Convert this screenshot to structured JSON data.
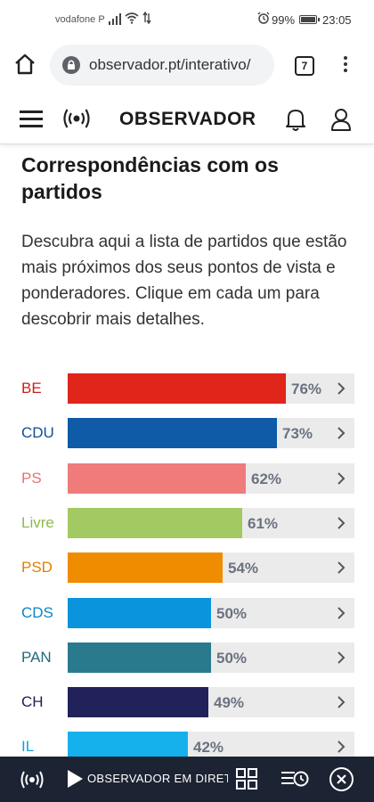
{
  "status_bar": {
    "carrier": "vodafone P",
    "battery": "99%",
    "time": "23:05"
  },
  "browser": {
    "url": "observador.pt/interativo/",
    "tab_count": "7"
  },
  "site": {
    "logo": "OBSERVADOR"
  },
  "section": {
    "title": "Correspondências com os partidos",
    "description": "Descubra aqui a lista de partidos que estão mais próximos dos seus pontos de vista e ponderadores. Clique em cada um para descobrir mais detalhes."
  },
  "parties": [
    {
      "name": "BE",
      "value": 76,
      "label": "76%",
      "color": "#e0251b",
      "name_color": "#c8211a"
    },
    {
      "name": "CDU",
      "value": 73,
      "label": "73%",
      "color": "#0f5ba8",
      "name_color": "#0f4f92"
    },
    {
      "name": "PS",
      "value": 62,
      "label": "62%",
      "color": "#ef7b7b",
      "name_color": "#e77373"
    },
    {
      "name": "Livre",
      "value": 61,
      "label": "61%",
      "color": "#a3c962",
      "name_color": "#8fb84e"
    },
    {
      "name": "PSD",
      "value": 54,
      "label": "54%",
      "color": "#f08c00",
      "name_color": "#e07f00"
    },
    {
      "name": "CDS",
      "value": 50,
      "label": "50%",
      "color": "#0b94de",
      "name_color": "#0a86c8"
    },
    {
      "name": "PAN",
      "value": 50,
      "label": "50%",
      "color": "#2a7a8e",
      "name_color": "#236a7c"
    },
    {
      "name": "CH",
      "value": 49,
      "label": "49%",
      "color": "#22225a",
      "name_color": "#1e1e50"
    },
    {
      "name": "IL",
      "value": 42,
      "label": "42%",
      "color": "#14b1ec",
      "name_color": "#12a0d8"
    }
  ],
  "live_bar": {
    "text": "OBSERVADOR EM DIRETO"
  },
  "icons": {
    "home": "home-icon",
    "lock": "lock-icon",
    "menu": "more-vert-icon",
    "hamburger": "hamburger-icon",
    "radio": "radio-broadcast-icon",
    "bell": "bell-icon",
    "user": "user-icon",
    "play": "play-icon",
    "grid": "grid-icon",
    "history": "history-icon",
    "close": "close-icon",
    "chevron": "chevron-right-icon"
  }
}
